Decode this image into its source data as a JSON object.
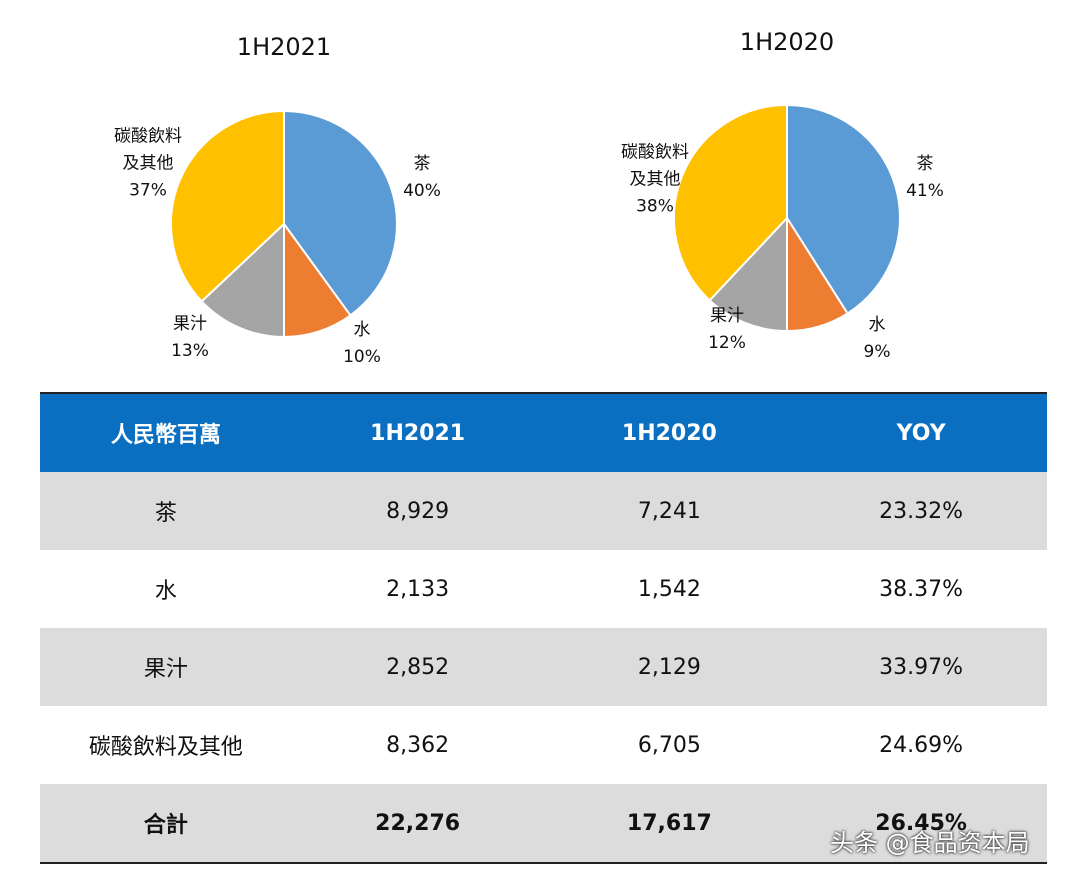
{
  "chart_data": [
    {
      "type": "pie",
      "title": "1H2021",
      "categories": [
        "茶",
        "水",
        "果汁",
        "碳酸飲料及其他"
      ],
      "values": [
        40,
        10,
        13,
        37
      ],
      "value_labels": [
        "40%",
        "10%",
        "13%",
        "37%"
      ],
      "colors": [
        "#5b9bd5",
        "#ed7d31",
        "#a5a5a5",
        "#ffc000"
      ]
    },
    {
      "type": "pie",
      "title": "1H2020",
      "categories": [
        "茶",
        "水",
        "果汁",
        "碳酸飲料及其他"
      ],
      "values": [
        41,
        9,
        12,
        38
      ],
      "value_labels": [
        "41%",
        "9%",
        "12%",
        "38%"
      ],
      "colors": [
        "#5b9bd5",
        "#ed7d31",
        "#a5a5a5",
        "#ffc000"
      ]
    }
  ],
  "table": {
    "header": [
      "人民幣百萬",
      "1H2021",
      "1H2020",
      "YOY"
    ],
    "rows": [
      [
        "茶",
        "8,929",
        "7,241",
        "23.32%"
      ],
      [
        "水",
        "2,133",
        "1,542",
        "38.37%"
      ],
      [
        "果汁",
        "2,852",
        "2,129",
        "33.97%"
      ],
      [
        "碳酸飲料及其他",
        "8,362",
        "6,705",
        "24.69%"
      ],
      [
        "合計",
        "22,276",
        "17,617",
        "26.45%"
      ]
    ]
  },
  "watermark": "头条 @食品资本局"
}
